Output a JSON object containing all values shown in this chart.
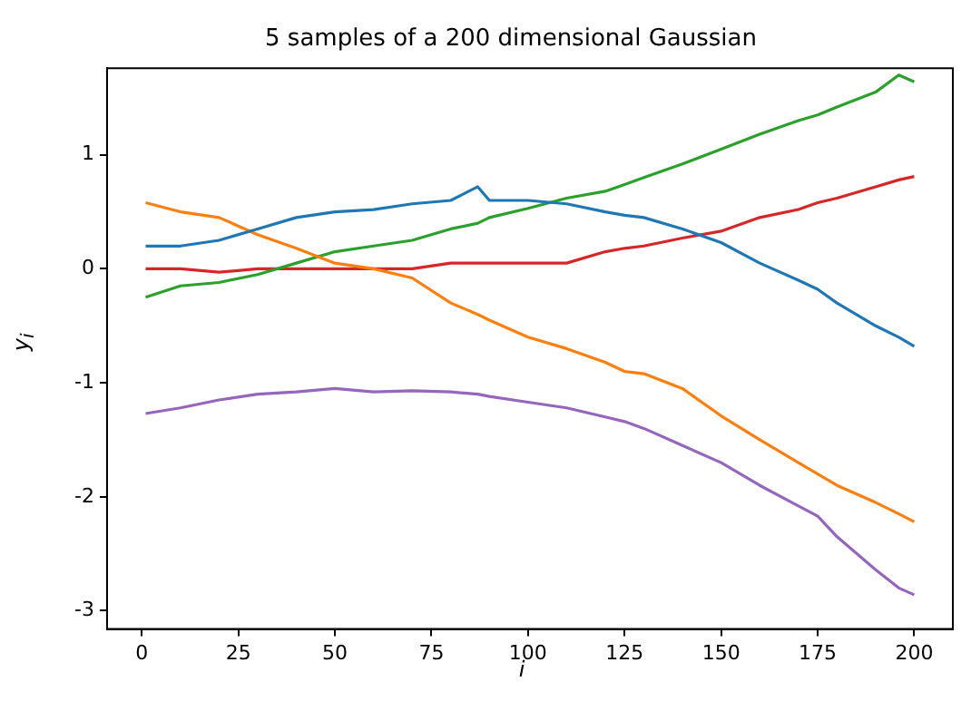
{
  "chart_data": {
    "type": "line",
    "title": "5 samples of a 200 dimensional Gaussian",
    "xlabel": "i",
    "ylabel": "y$_{i}$",
    "x": [
      1,
      10,
      20,
      30,
      40,
      50,
      60,
      70,
      80,
      87,
      90,
      100,
      110,
      120,
      125,
      130,
      140,
      150,
      160,
      170,
      175,
      180,
      190,
      196,
      200
    ],
    "series": [
      {
        "color": "#1f77b4",
        "values": [
          0.2,
          0.2,
          0.25,
          0.35,
          0.45,
          0.5,
          0.52,
          0.57,
          0.6,
          0.72,
          0.6,
          0.6,
          0.57,
          0.5,
          0.47,
          0.45,
          0.35,
          0.23,
          0.05,
          -0.1,
          -0.18,
          -0.3,
          -0.5,
          -0.6,
          -0.68
        ]
      },
      {
        "color": "#ff7f0e",
        "values": [
          0.58,
          0.5,
          0.45,
          0.3,
          0.18,
          0.05,
          0.0,
          -0.08,
          -0.3,
          -0.4,
          -0.45,
          -0.6,
          -0.7,
          -0.82,
          -0.9,
          -0.92,
          -1.05,
          -1.29,
          -1.5,
          -1.7,
          -1.8,
          -1.9,
          -2.05,
          -2.15,
          -2.22
        ]
      },
      {
        "color": "#2ca02c",
        "values": [
          -0.25,
          -0.15,
          -0.12,
          -0.05,
          0.05,
          0.15,
          0.2,
          0.25,
          0.35,
          0.4,
          0.45,
          0.53,
          0.62,
          0.68,
          0.74,
          0.8,
          0.92,
          1.05,
          1.18,
          1.3,
          1.35,
          1.42,
          1.55,
          1.7,
          1.64
        ]
      },
      {
        "color": "#d62728",
        "values": [
          0.0,
          0.0,
          -0.03,
          0.0,
          0.0,
          0.0,
          0.0,
          0.0,
          0.05,
          0.05,
          0.05,
          0.05,
          0.05,
          0.15,
          0.18,
          0.2,
          0.27,
          0.33,
          0.45,
          0.52,
          0.58,
          0.62,
          0.72,
          0.78,
          0.81
        ]
      },
      {
        "color": "#9467bd",
        "values": [
          -1.27,
          -1.22,
          -1.15,
          -1.1,
          -1.08,
          -1.05,
          -1.08,
          -1.07,
          -1.08,
          -1.1,
          -1.12,
          -1.17,
          -1.22,
          -1.3,
          -1.34,
          -1.4,
          -1.55,
          -1.7,
          -1.9,
          -2.08,
          -2.17,
          -2.35,
          -2.64,
          -2.8,
          -2.86
        ]
      }
    ],
    "xlim": [
      -9,
      210
    ],
    "xticks": [
      0,
      25,
      50,
      75,
      100,
      125,
      150,
      175,
      200
    ],
    "ylim": [
      -3.16,
      1.76
    ],
    "yticks": [
      -3,
      -2,
      -1,
      0,
      1
    ],
    "grid": false,
    "legend": false,
    "marker": "none",
    "line_style": "solid"
  }
}
